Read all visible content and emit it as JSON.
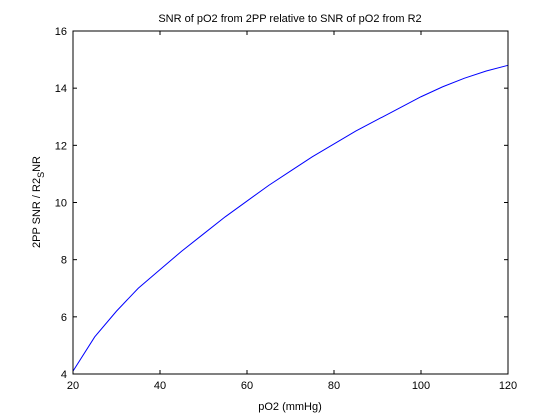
{
  "chart_data": {
    "type": "line",
    "title": "SNR of pO2 from 2PP relative to SNR of pO2 from R2",
    "xlabel": "pO2 (mmHg)",
    "ylabel": "2PP SNR / R2_SNR",
    "xlim": [
      20,
      120
    ],
    "ylim": [
      4,
      16
    ],
    "xticks": [
      20,
      40,
      60,
      80,
      100,
      120
    ],
    "yticks": [
      4,
      6,
      8,
      10,
      12,
      14,
      16
    ],
    "grid": false,
    "series": [
      {
        "color": "#0000ff",
        "x": [
          20,
          25,
          30,
          35,
          40,
          45,
          50,
          55,
          60,
          65,
          70,
          75,
          80,
          85,
          90,
          95,
          100,
          105,
          110,
          115,
          120
        ],
        "y": [
          4.1,
          5.3,
          6.2,
          7.0,
          7.65,
          8.3,
          8.9,
          9.5,
          10.05,
          10.6,
          11.1,
          11.6,
          12.05,
          12.5,
          12.9,
          13.3,
          13.7,
          14.05,
          14.35,
          14.6,
          14.8
        ]
      }
    ]
  }
}
